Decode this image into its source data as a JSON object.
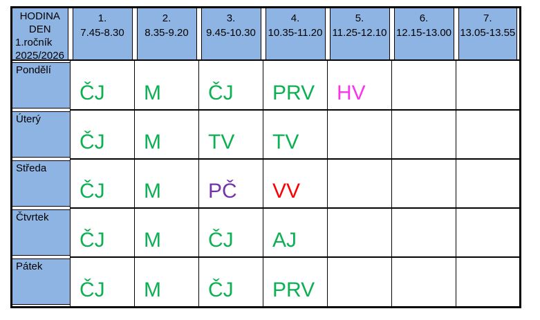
{
  "page": {
    "background": "#ffffff"
  },
  "timetable": {
    "corner": {
      "line1": "HODINA",
      "line2": "DEN",
      "line3": "1.ročník",
      "line4": "2025/2026"
    },
    "header_fill": "#8DB4E2",
    "border_color": "#000000",
    "text_color": "#000000",
    "subject_colors": {
      "green": "#0CB052",
      "magenta": "#F935EB",
      "purple": "#7433A9",
      "red": "#FB0000"
    },
    "periods": [
      {
        "num": "1.",
        "time": "7.45-8.30"
      },
      {
        "num": "2.",
        "time": "8.35-9.20"
      },
      {
        "num": "3.",
        "time": "9.45-10.30"
      },
      {
        "num": "4.",
        "time": "10.35-11.20"
      },
      {
        "num": "5.",
        "time": "11.25-12.10"
      },
      {
        "num": "6.",
        "time": "12.15-13.00"
      },
      {
        "num": "7.",
        "time": "13.05-13.55"
      }
    ],
    "days": [
      {
        "name": "Pondělí",
        "lessons": [
          {
            "subject": "ČJ",
            "color": "green"
          },
          {
            "subject": "M",
            "color": "green"
          },
          {
            "subject": "ČJ",
            "color": "green"
          },
          {
            "subject": "PRV",
            "color": "green"
          },
          {
            "subject": "HV",
            "color": "magenta"
          },
          {
            "subject": "",
            "color": "green"
          },
          {
            "subject": "",
            "color": "green"
          }
        ]
      },
      {
        "name": "Úterý",
        "lessons": [
          {
            "subject": "ČJ",
            "color": "green"
          },
          {
            "subject": "M",
            "color": "green"
          },
          {
            "subject": "TV",
            "color": "green"
          },
          {
            "subject": "TV",
            "color": "green"
          },
          {
            "subject": "",
            "color": "green"
          },
          {
            "subject": "",
            "color": "green"
          },
          {
            "subject": "",
            "color": "green"
          }
        ]
      },
      {
        "name": "Středa",
        "lessons": [
          {
            "subject": "ČJ",
            "color": "green"
          },
          {
            "subject": "M",
            "color": "green"
          },
          {
            "subject": "PČ",
            "color": "purple"
          },
          {
            "subject": "VV",
            "color": "red"
          },
          {
            "subject": "",
            "color": "green"
          },
          {
            "subject": "",
            "color": "green"
          },
          {
            "subject": "",
            "color": "green"
          }
        ]
      },
      {
        "name": "Čtvrtek",
        "lessons": [
          {
            "subject": "ČJ",
            "color": "green"
          },
          {
            "subject": "M",
            "color": "green"
          },
          {
            "subject": "ČJ",
            "color": "green"
          },
          {
            "subject": "AJ",
            "color": "green"
          },
          {
            "subject": "",
            "color": "green"
          },
          {
            "subject": "",
            "color": "green"
          },
          {
            "subject": "",
            "color": "green"
          }
        ]
      },
      {
        "name": "Pátek",
        "lessons": [
          {
            "subject": "ČJ",
            "color": "green"
          },
          {
            "subject": "M",
            "color": "green"
          },
          {
            "subject": "ČJ",
            "color": "green"
          },
          {
            "subject": "PRV",
            "color": "green"
          },
          {
            "subject": "",
            "color": "green"
          },
          {
            "subject": "",
            "color": "green"
          },
          {
            "subject": "",
            "color": "green"
          }
        ]
      }
    ]
  }
}
